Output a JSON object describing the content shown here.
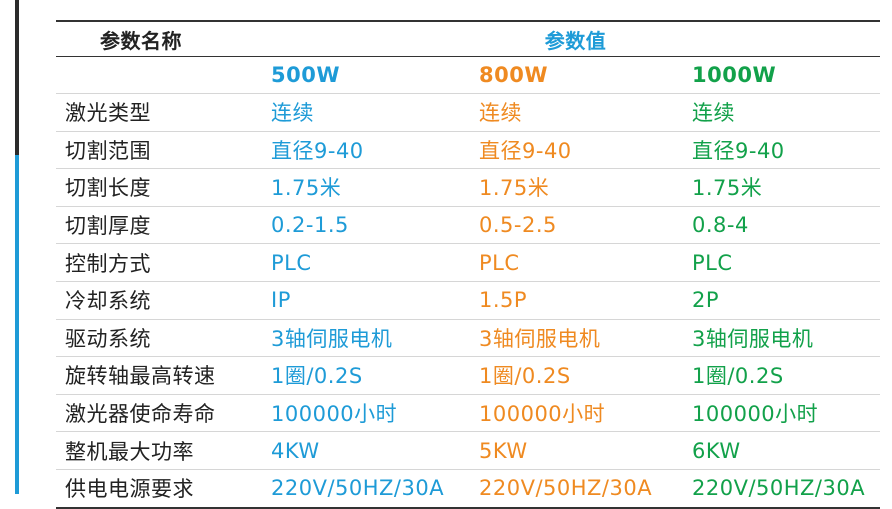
{
  "header": {
    "name_col": "参数名称",
    "value_group": "参数值"
  },
  "models": [
    "500W",
    "800W",
    "1000W"
  ],
  "colors": {
    "model_1": "#1e9bd7",
    "model_2": "#ef8a21",
    "model_3": "#12a14a",
    "side_bar_dark": "#2b2b2b",
    "side_bar_blue": "#1e9bd7"
  },
  "rows": [
    {
      "name": "激光类型",
      "values": [
        "连续",
        "连续",
        "连续"
      ]
    },
    {
      "name": "切割范围",
      "values": [
        "直径9-40",
        "直径9-40",
        "直径9-40"
      ]
    },
    {
      "name": "切割长度",
      "values": [
        "1.75米",
        "1.75米",
        "1.75米"
      ]
    },
    {
      "name": "切割厚度",
      "values": [
        "0.2-1.5",
        "0.5-2.5",
        "0.8-4"
      ]
    },
    {
      "name": "控制方式",
      "values": [
        "PLC",
        "PLC",
        "PLC"
      ]
    },
    {
      "name": "冷却系统",
      "values": [
        "IP",
        "1.5P",
        "2P"
      ]
    },
    {
      "name": "驱动系统",
      "values": [
        "3轴伺服电机",
        "3轴伺服电机",
        "3轴伺服电机"
      ]
    },
    {
      "name": "旋转轴最高转速",
      "values": [
        "1圈/0.2S",
        "1圈/0.2S",
        "1圈/0.2S"
      ]
    },
    {
      "name": "激光器使命寿命",
      "values": [
        "100000小时",
        "100000小时",
        "100000小时"
      ]
    },
    {
      "name": "整机最大功率",
      "values": [
        "4KW",
        "5KW",
        "6KW"
      ]
    },
    {
      "name": "供电电源要求",
      "values": [
        "220V/50HZ/30A",
        "220V/50HZ/30A",
        "220V/50HZ/30A"
      ]
    }
  ]
}
